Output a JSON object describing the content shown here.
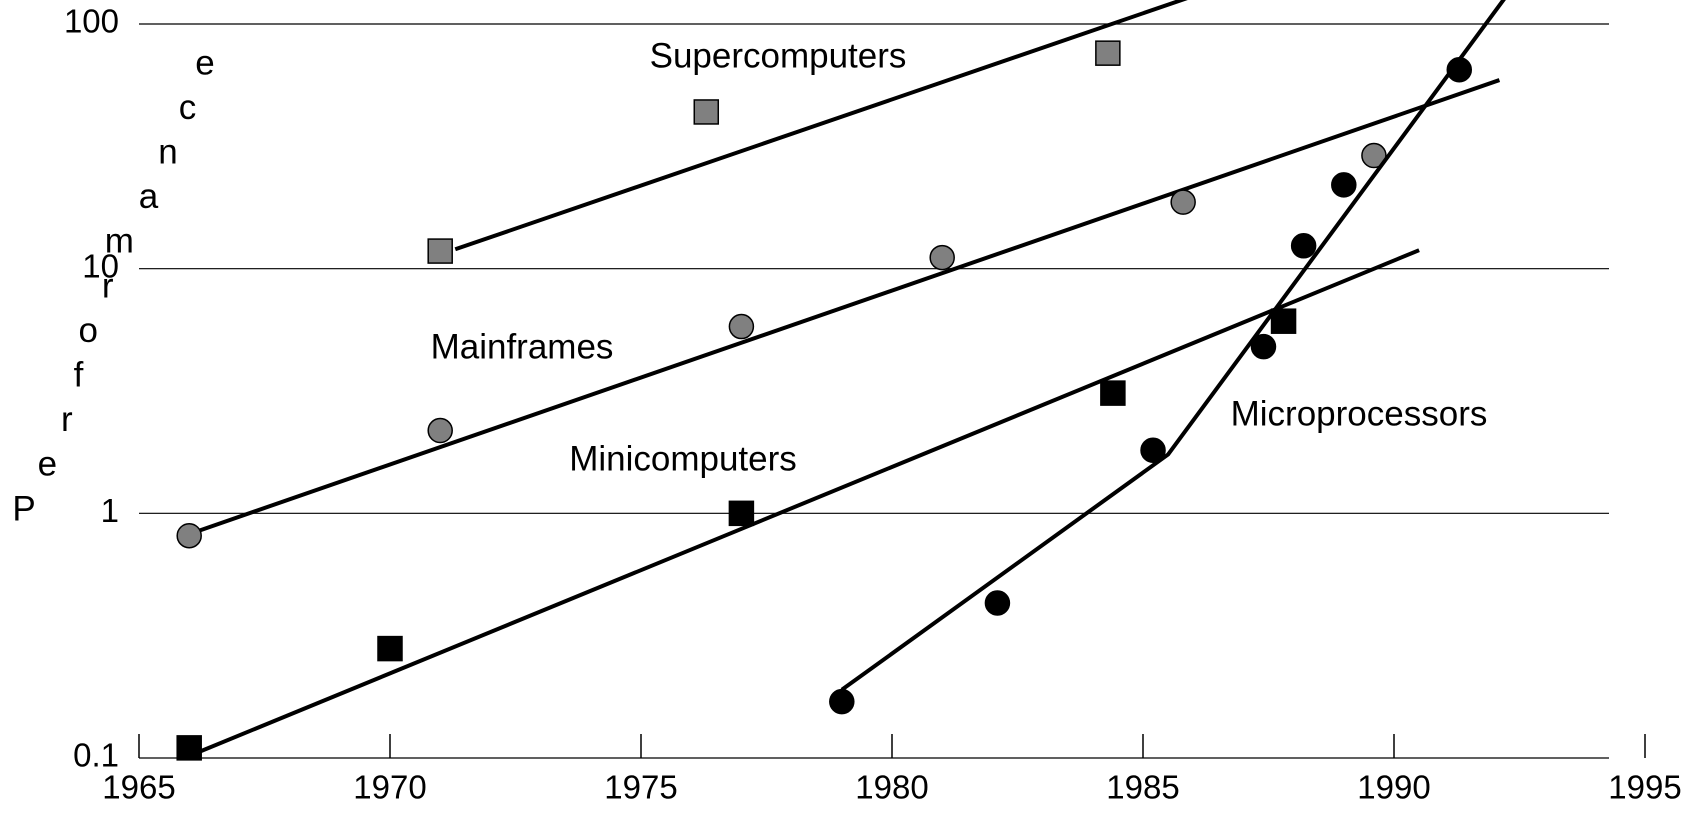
{
  "chart_data": {
    "type": "scatter",
    "ylabel": "Performance",
    "log_y": true,
    "grid": true,
    "xlim": [
      1965,
      1995
    ],
    "ylim": [
      0.1,
      100
    ],
    "xticks": [
      1965,
      1970,
      1975,
      1980,
      1985,
      1990,
      1995
    ],
    "yticks": [
      0.1,
      1,
      10,
      100
    ],
    "series": [
      {
        "name": "Supercomputers",
        "color": "#808080",
        "marker": "square",
        "x": [
          1971,
          1976.3,
          1984.3
        ],
        "values": [
          11.8,
          43.7,
          76
        ],
        "trend": {
          "x": [
            1971.3,
            1985.9
          ],
          "values": [
            12,
            128
          ]
        }
      },
      {
        "name": "Mainframes",
        "color": "#808080",
        "marker": "circle",
        "x": [
          1966,
          1971,
          1977,
          1981,
          1985.8,
          1989.6
        ],
        "values": [
          0.81,
          2.18,
          5.8,
          11.1,
          18.7,
          29
        ],
        "trend": {
          "x": [
            1966.2,
            1992.1
          ],
          "values": [
            0.85,
            59
          ]
        }
      },
      {
        "name": "Minicomputers",
        "color": "#000000",
        "marker": "square",
        "x": [
          1966,
          1970,
          1977,
          1984.4,
          1987.8
        ],
        "values": [
          0.11,
          0.28,
          1.0,
          3.1,
          6.1
        ],
        "trend": {
          "x": [
            1965.9,
            1990.5
          ],
          "values": [
            0.1,
            11.9
          ]
        }
      },
      {
        "name": "Microprocessors",
        "color": "#000000",
        "marker": "circle",
        "x": [
          1979,
          1982.1,
          1985.2,
          1987.4,
          1988.2,
          1989,
          1991.3
        ],
        "values": [
          0.17,
          0.43,
          1.81,
          4.8,
          12.4,
          22,
          65
        ],
        "trend": {
          "x": [
            1979,
            1985.5,
            1992.2
          ],
          "values": [
            0.19,
            1.74,
            127
          ]
        }
      }
    ]
  }
}
